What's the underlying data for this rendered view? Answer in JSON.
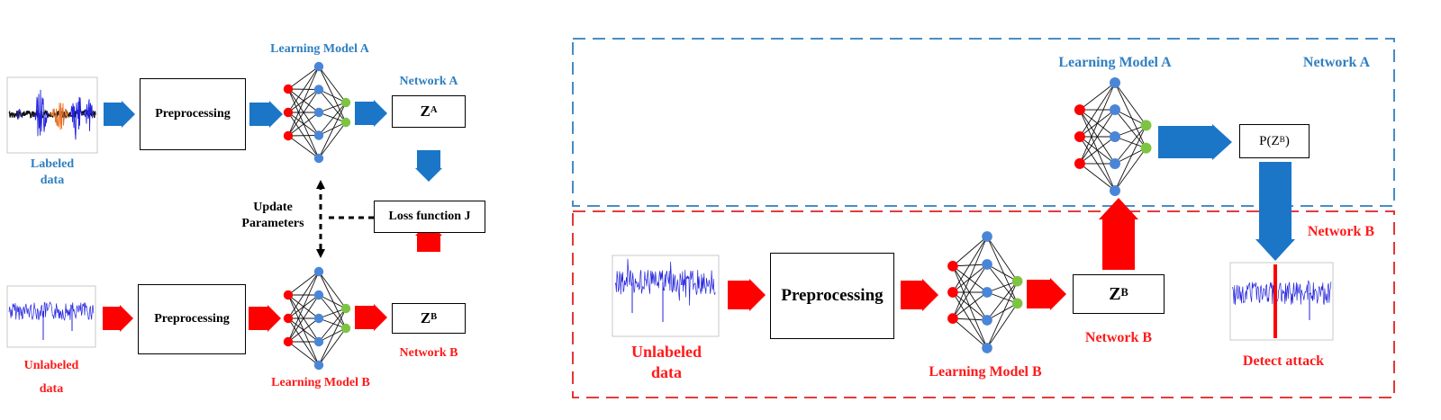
{
  "colors": {
    "blue_arrow": "#1b76c8",
    "red_arrow": "#ff0000",
    "blue_text": "#2f7fc1",
    "red_text": "#ff1a1a",
    "node_red": "#ff0000",
    "node_blue": "#4a86d8",
    "node_green": "#7dc442",
    "signal_blue": "#2222dd",
    "burst_orange": "#e8732a",
    "frame_blue": "#2f7fc1",
    "frame_red": "#e02020"
  },
  "left_panel": {
    "labeled_data": "Labeled\ndata",
    "unlabeled_data_line1": "Unlabeled",
    "unlabeled_data_line2": "data",
    "preprocessing_top": "Preprocessing",
    "preprocessing_bottom": "Preprocessing",
    "learning_model_a": "Learning Model A",
    "learning_model_b": "Learning Model B",
    "network_a": "Network A",
    "network_b": "Network B",
    "z_a_base": "Z",
    "z_a_sup": "A",
    "z_b_base": "Z",
    "z_b_sup": "B",
    "loss_function": "Loss function J",
    "update_parameters": "Update\nParameters"
  },
  "right_panel": {
    "learning_model_a": "Learning Model A",
    "network_a": "Network A",
    "network_b_frame": "Network B",
    "prob_prefix": "P(Z",
    "prob_sup": "B",
    "prob_suffix": ")",
    "preprocessing": "Preprocessing",
    "z_b_base": "Z",
    "z_b_sup": "B",
    "unlabeled_data": "Unlabeled\ndata",
    "learning_model_b": "Learning Model B",
    "network_b": "Network B",
    "detect_attack": "Detect attack"
  }
}
